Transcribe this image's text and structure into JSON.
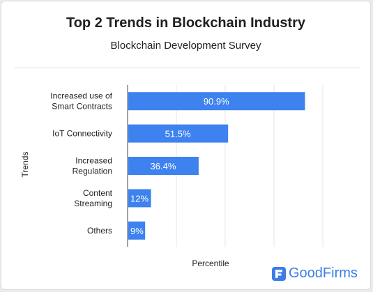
{
  "title": "Top 2 Trends in Blockchain Industry",
  "subtitle": "Blockchain Development Survey",
  "brand": {
    "name": "GoodFirms",
    "color": "#3b7de8"
  },
  "chart_data": {
    "type": "bar",
    "orientation": "horizontal",
    "title": "Top 2 Trends in Blockchain Industry",
    "subtitle": "Blockchain Development Survey",
    "xlabel": "Percentile",
    "ylabel": "Trends",
    "categories": [
      [
        "Increased use of",
        "Smart Contracts"
      ],
      [
        "IoT Connectivity"
      ],
      [
        "Increased",
        "Regulation"
      ],
      [
        "Content",
        "Streaming"
      ],
      [
        "Others"
      ]
    ],
    "values": [
      90.9,
      51.5,
      36.4,
      12,
      9
    ],
    "data_labels": [
      "90.9%",
      "51.5%",
      "36.4%",
      "12%",
      "9%"
    ],
    "xlim": [
      0,
      100
    ],
    "grid": "vertical",
    "bar_color": "#3e82f0",
    "label_color": "#ffffff",
    "grid_color": "#e3e5e8"
  }
}
